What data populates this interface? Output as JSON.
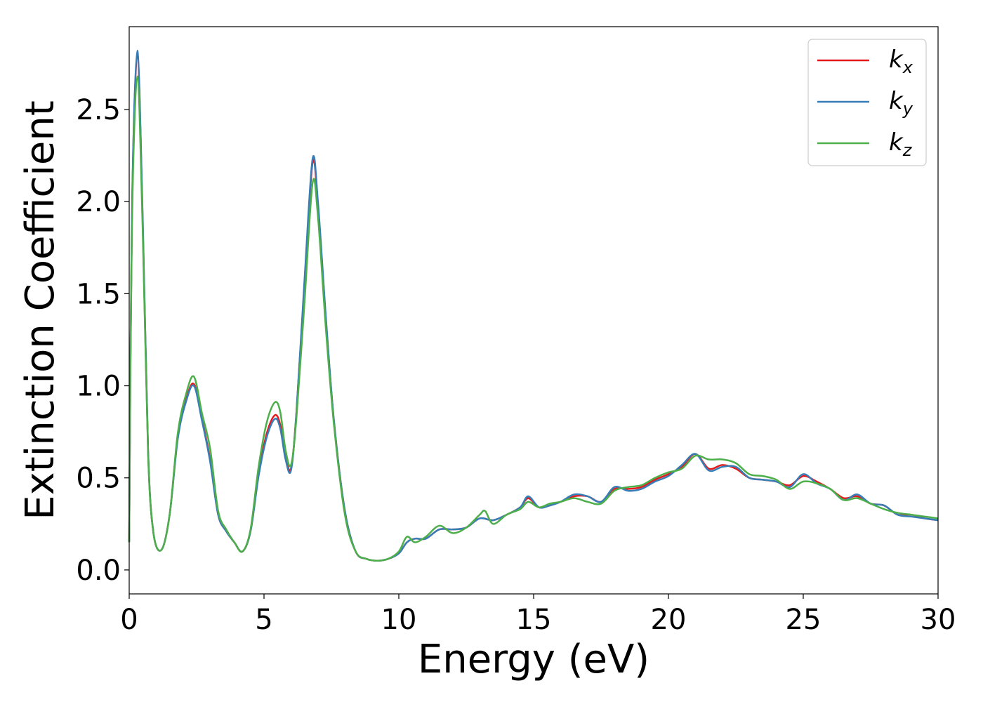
{
  "chart_data": {
    "type": "line",
    "xlabel": "Energy (eV)",
    "ylabel": "Extinction Coefficient",
    "xlim": [
      0,
      30
    ],
    "ylim": [
      -0.13,
      2.95
    ],
    "xticks": [
      0,
      5,
      10,
      15,
      20,
      25,
      30
    ],
    "xtick_labels": [
      "0",
      "5",
      "10",
      "15",
      "20",
      "25",
      "30"
    ],
    "yticks": [
      0.0,
      0.5,
      1.0,
      1.5,
      2.0,
      2.5
    ],
    "ytick_labels": [
      "0.0",
      "0.5",
      "1.0",
      "1.5",
      "2.0",
      "2.5"
    ],
    "grid": false,
    "legend_position": "top-right",
    "series": [
      {
        "name": "k_x",
        "label_main": "k",
        "label_sub": "x",
        "color": "#e41a1c",
        "x": [
          0,
          0.1,
          0.3,
          0.5,
          0.7,
          0.9,
          1.2,
          1.5,
          1.8,
          2.1,
          2.4,
          2.7,
          3.0,
          3.3,
          3.6,
          3.9,
          4.2,
          4.5,
          4.8,
          5.1,
          5.4,
          5.6,
          5.8,
          6.0,
          6.2,
          6.5,
          6.8,
          7.0,
          7.3,
          7.6,
          8.0,
          8.4,
          8.8,
          9.2,
          9.6,
          10.0,
          10.3,
          10.6,
          11.0,
          11.5,
          12.0,
          12.5,
          13.0,
          13.5,
          14.0,
          14.5,
          14.8,
          15.2,
          15.6,
          16.0,
          16.5,
          17.0,
          17.5,
          18.0,
          18.5,
          19.0,
          19.5,
          20.0,
          20.5,
          21.0,
          21.5,
          22.0,
          22.5,
          23.0,
          23.5,
          24.0,
          24.5,
          25.0,
          25.5,
          26.0,
          26.5,
          27.0,
          27.5,
          28.0,
          28.5,
          29.0,
          29.5,
          30.0
        ],
        "y": [
          0.15,
          1.9,
          2.8,
          1.9,
          0.65,
          0.2,
          0.11,
          0.3,
          0.72,
          0.92,
          1.01,
          0.82,
          0.6,
          0.3,
          0.21,
          0.15,
          0.1,
          0.21,
          0.52,
          0.74,
          0.84,
          0.79,
          0.62,
          0.55,
          0.85,
          1.55,
          2.21,
          1.98,
          1.35,
          0.8,
          0.32,
          0.1,
          0.06,
          0.05,
          0.06,
          0.09,
          0.15,
          0.17,
          0.17,
          0.22,
          0.22,
          0.23,
          0.28,
          0.27,
          0.3,
          0.34,
          0.39,
          0.34,
          0.35,
          0.37,
          0.4,
          0.4,
          0.37,
          0.44,
          0.44,
          0.45,
          0.49,
          0.52,
          0.56,
          0.63,
          0.55,
          0.57,
          0.55,
          0.5,
          0.49,
          0.48,
          0.46,
          0.51,
          0.48,
          0.44,
          0.39,
          0.4,
          0.36,
          0.35,
          0.3,
          0.3,
          0.28,
          0.27
        ]
      },
      {
        "name": "k_y",
        "label_main": "k",
        "label_sub": "y",
        "color": "#377eb8",
        "x": [
          0,
          0.1,
          0.3,
          0.5,
          0.7,
          0.9,
          1.2,
          1.5,
          1.8,
          2.1,
          2.4,
          2.7,
          3.0,
          3.3,
          3.6,
          3.9,
          4.2,
          4.5,
          4.8,
          5.1,
          5.4,
          5.6,
          5.8,
          6.0,
          6.2,
          6.5,
          6.8,
          7.0,
          7.3,
          7.6,
          8.0,
          8.4,
          8.8,
          9.2,
          9.6,
          10.0,
          10.3,
          10.6,
          11.0,
          11.5,
          12.0,
          12.5,
          13.0,
          13.5,
          14.0,
          14.5,
          14.8,
          15.2,
          15.6,
          16.0,
          16.5,
          17.0,
          17.5,
          18.0,
          18.5,
          19.0,
          19.5,
          20.0,
          20.5,
          21.0,
          21.5,
          22.0,
          22.5,
          23.0,
          23.5,
          24.0,
          24.5,
          25.0,
          25.5,
          26.0,
          26.5,
          27.0,
          27.5,
          28.0,
          28.5,
          29.0,
          29.5,
          30.0
        ],
        "y": [
          0.15,
          1.92,
          2.82,
          1.92,
          0.65,
          0.2,
          0.11,
          0.3,
          0.71,
          0.91,
          1.0,
          0.81,
          0.59,
          0.3,
          0.21,
          0.15,
          0.1,
          0.21,
          0.51,
          0.72,
          0.82,
          0.77,
          0.6,
          0.54,
          0.85,
          1.57,
          2.23,
          2.0,
          1.36,
          0.8,
          0.32,
          0.1,
          0.06,
          0.05,
          0.06,
          0.09,
          0.15,
          0.17,
          0.17,
          0.22,
          0.22,
          0.23,
          0.28,
          0.27,
          0.3,
          0.34,
          0.4,
          0.34,
          0.35,
          0.37,
          0.41,
          0.4,
          0.37,
          0.45,
          0.43,
          0.44,
          0.48,
          0.51,
          0.57,
          0.63,
          0.54,
          0.56,
          0.56,
          0.5,
          0.49,
          0.48,
          0.45,
          0.52,
          0.47,
          0.44,
          0.38,
          0.41,
          0.36,
          0.35,
          0.3,
          0.29,
          0.28,
          0.27
        ]
      },
      {
        "name": "k_z",
        "label_main": "k",
        "label_sub": "z",
        "color": "#4daf4a",
        "x": [
          0,
          0.1,
          0.3,
          0.5,
          0.7,
          0.9,
          1.2,
          1.5,
          1.8,
          2.1,
          2.4,
          2.7,
          3.0,
          3.3,
          3.6,
          3.9,
          4.2,
          4.5,
          4.8,
          5.1,
          5.4,
          5.6,
          5.8,
          6.0,
          6.2,
          6.5,
          6.8,
          7.0,
          7.3,
          7.6,
          8.0,
          8.4,
          8.8,
          9.2,
          9.6,
          10.0,
          10.3,
          10.6,
          11.0,
          11.5,
          12.0,
          12.5,
          13.0,
          13.2,
          13.5,
          14.0,
          14.5,
          14.8,
          15.2,
          15.6,
          16.0,
          16.5,
          17.0,
          17.5,
          18.0,
          18.5,
          19.0,
          19.5,
          20.0,
          20.5,
          21.0,
          21.5,
          22.0,
          22.5,
          23.0,
          23.5,
          24.0,
          24.5,
          25.0,
          25.5,
          26.0,
          26.5,
          27.0,
          27.5,
          28.0,
          28.5,
          29.0,
          29.5,
          30.0
        ],
        "y": [
          0.15,
          1.85,
          2.68,
          1.85,
          0.63,
          0.2,
          0.11,
          0.3,
          0.74,
          0.95,
          1.05,
          0.85,
          0.66,
          0.32,
          0.22,
          0.15,
          0.1,
          0.22,
          0.56,
          0.8,
          0.91,
          0.86,
          0.65,
          0.57,
          0.82,
          1.45,
          2.1,
          1.92,
          1.3,
          0.78,
          0.3,
          0.1,
          0.06,
          0.05,
          0.06,
          0.1,
          0.18,
          0.15,
          0.18,
          0.24,
          0.2,
          0.23,
          0.3,
          0.32,
          0.25,
          0.3,
          0.33,
          0.37,
          0.34,
          0.36,
          0.37,
          0.39,
          0.37,
          0.36,
          0.43,
          0.45,
          0.46,
          0.5,
          0.53,
          0.55,
          0.62,
          0.6,
          0.6,
          0.58,
          0.52,
          0.51,
          0.49,
          0.44,
          0.48,
          0.47,
          0.44,
          0.38,
          0.39,
          0.36,
          0.33,
          0.31,
          0.3,
          0.29,
          0.28
        ]
      }
    ]
  }
}
